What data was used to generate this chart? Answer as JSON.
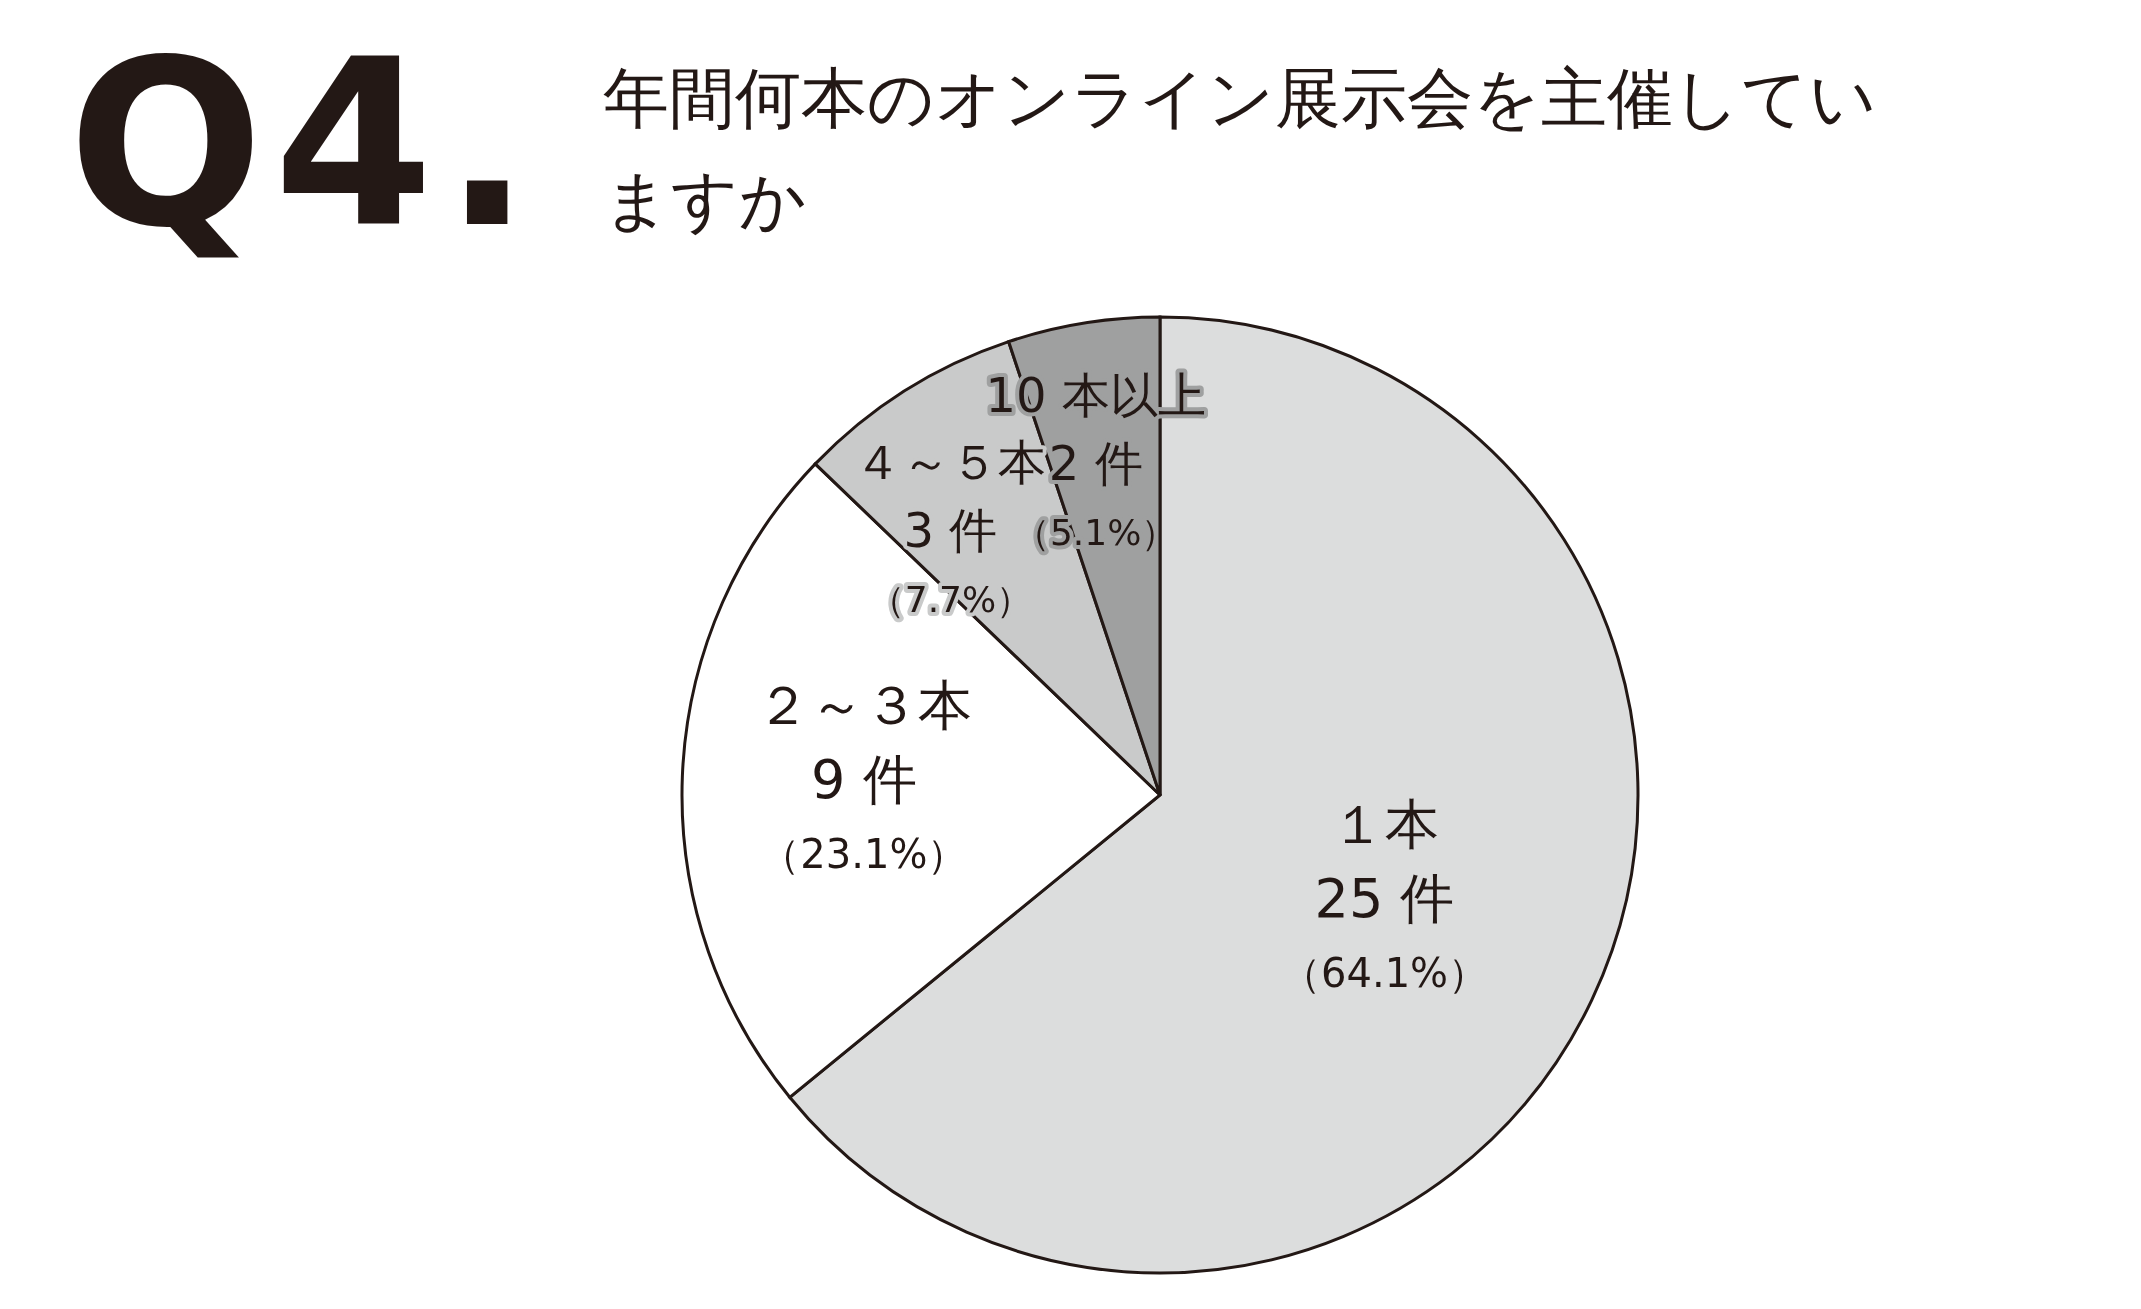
{
  "chart_data": {
    "type": "pie",
    "title": "Q4.",
    "subtitle": "年間何本のオンライン展示会を主催していますか",
    "categories": [
      "１本",
      "２～３本",
      "４～５本",
      "10 本以上"
    ],
    "values": [
      25,
      9,
      3,
      2
    ],
    "value_labels": [
      "25 件（64.1%）",
      "9 件（23.1%）",
      "3 件（7.7%）",
      "2 件（5.1%）"
    ],
    "colors": [
      "#dcdddd",
      "#ffffff",
      "#c9caca",
      "#9fa0a0"
    ],
    "legend": false
  }
}
